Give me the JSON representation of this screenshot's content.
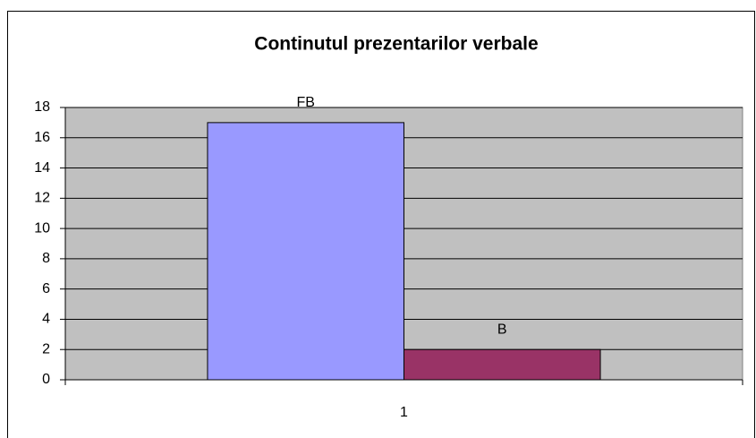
{
  "chart_data": {
    "type": "bar",
    "title": "Continutul prezentarilor verbale",
    "categories": [
      "1"
    ],
    "series": [
      {
        "name": "FB",
        "color": "#9999ff",
        "values": [
          17
        ]
      },
      {
        "name": "B",
        "color": "#993366",
        "values": [
          2
        ]
      }
    ],
    "ylim": [
      0,
      18
    ],
    "yticks": [
      0,
      2,
      4,
      6,
      8,
      10,
      12,
      14,
      16,
      18
    ],
    "grid": true
  }
}
